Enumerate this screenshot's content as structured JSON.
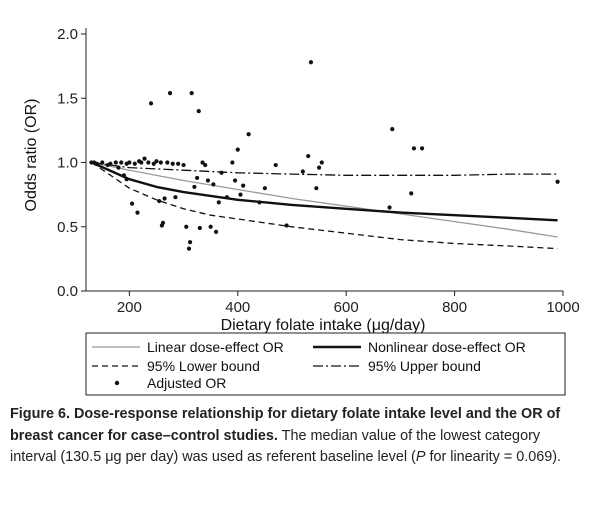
{
  "chart_data": {
    "type": "line",
    "xlabel": "Dietary folate intake (μg/day)",
    "ylabel": "Odds ratio (OR)",
    "xlim": [
      120,
      1000
    ],
    "ylim": [
      0,
      2.0
    ],
    "x_ticks": [
      200,
      400,
      600,
      800,
      1000
    ],
    "y_ticks": [
      0.0,
      0.5,
      1.0,
      1.5,
      2.0
    ],
    "y_tick_labels": [
      "0.0",
      "0.5",
      "1.0",
      "1.5",
      "2.0"
    ],
    "grid": false,
    "legend_position": "bottom",
    "series": [
      {
        "name": "Linear dose-effect OR",
        "style": "solid-thin",
        "color": "#9a9a9a",
        "x": [
          130.5,
          200,
          300,
          400,
          500,
          600,
          700,
          800,
          900,
          990
        ],
        "y": [
          1.0,
          0.94,
          0.86,
          0.79,
          0.72,
          0.66,
          0.6,
          0.54,
          0.48,
          0.42
        ]
      },
      {
        "name": "Nonlinear dose-effect OR",
        "style": "solid-thick",
        "color": "#111111",
        "x": [
          130.5,
          200,
          250,
          300,
          350,
          400,
          500,
          600,
          700,
          800,
          900,
          990
        ],
        "y": [
          1.0,
          0.87,
          0.81,
          0.77,
          0.74,
          0.71,
          0.67,
          0.64,
          0.61,
          0.59,
          0.57,
          0.55
        ]
      },
      {
        "name": "95% Lower bound",
        "style": "dashed",
        "color": "#111111",
        "x": [
          130.5,
          200,
          250,
          300,
          350,
          400,
          500,
          600,
          700,
          800,
          900,
          990
        ],
        "y": [
          1.0,
          0.8,
          0.71,
          0.64,
          0.59,
          0.56,
          0.5,
          0.45,
          0.4,
          0.37,
          0.35,
          0.33
        ]
      },
      {
        "name": "95% Upper bound",
        "style": "dash-dot",
        "color": "#111111",
        "x": [
          130.5,
          200,
          300,
          400,
          500,
          600,
          700,
          800,
          900,
          990
        ],
        "y": [
          1.0,
          0.96,
          0.94,
          0.92,
          0.91,
          0.9,
          0.9,
          0.9,
          0.91,
          0.91
        ]
      },
      {
        "name": "Adjusted OR",
        "style": "points",
        "color": "#111111",
        "points": [
          [
            130,
            1.0
          ],
          [
            135,
            1.0
          ],
          [
            140,
            0.99
          ],
          [
            150,
            1.0
          ],
          [
            160,
            0.98
          ],
          [
            165,
            0.99
          ],
          [
            175,
            1.0
          ],
          [
            180,
            0.96
          ],
          [
            185,
            1.0
          ],
          [
            195,
            0.99
          ],
          [
            200,
            1.0
          ],
          [
            210,
            0.99
          ],
          [
            190,
            0.9
          ],
          [
            195,
            0.87
          ],
          [
            205,
            0.68
          ],
          [
            215,
            0.61
          ],
          [
            218,
            1.01
          ],
          [
            222,
            1.0
          ],
          [
            228,
            1.03
          ],
          [
            235,
            1.0
          ],
          [
            240,
            1.46
          ],
          [
            245,
            0.99
          ],
          [
            250,
            1.01
          ],
          [
            255,
            0.7
          ],
          [
            258,
            1.0
          ],
          [
            260,
            0.51
          ],
          [
            262,
            0.53
          ],
          [
            265,
            0.72
          ],
          [
            270,
            1.0
          ],
          [
            275,
            1.54
          ],
          [
            280,
            0.99
          ],
          [
            285,
            0.73
          ],
          [
            290,
            0.99
          ],
          [
            300,
            0.98
          ],
          [
            305,
            0.5
          ],
          [
            310,
            0.33
          ],
          [
            312,
            0.38
          ],
          [
            315,
            1.54
          ],
          [
            320,
            0.81
          ],
          [
            325,
            0.88
          ],
          [
            328,
            1.4
          ],
          [
            330,
            0.49
          ],
          [
            335,
            1.0
          ],
          [
            340,
            0.98
          ],
          [
            345,
            0.86
          ],
          [
            350,
            0.5
          ],
          [
            355,
            0.83
          ],
          [
            360,
            0.46
          ],
          [
            365,
            0.69
          ],
          [
            370,
            0.92
          ],
          [
            380,
            0.73
          ],
          [
            390,
            1.0
          ],
          [
            395,
            0.86
          ],
          [
            400,
            1.1
          ],
          [
            405,
            0.75
          ],
          [
            410,
            0.82
          ],
          [
            420,
            1.22
          ],
          [
            440,
            0.69
          ],
          [
            450,
            0.8
          ],
          [
            470,
            0.98
          ],
          [
            490,
            0.51
          ],
          [
            520,
            0.93
          ],
          [
            530,
            1.05
          ],
          [
            535,
            1.78
          ],
          [
            545,
            0.8
          ],
          [
            550,
            0.96
          ],
          [
            555,
            1.0
          ],
          [
            680,
            0.65
          ],
          [
            685,
            1.26
          ],
          [
            720,
            0.76
          ],
          [
            725,
            1.11
          ],
          [
            740,
            1.11
          ],
          [
            990,
            0.85
          ]
        ]
      }
    ]
  },
  "legend": {
    "items": [
      {
        "label": "Linear dose-effect OR"
      },
      {
        "label": "Nonlinear dose-effect OR"
      },
      {
        "label": "95% Lower bound"
      },
      {
        "label": "95% Upper bound"
      },
      {
        "label": "Adjusted OR"
      }
    ]
  },
  "caption": {
    "bold": "Figure 6. Dose-response relationship for dietary folate intake level and the OR of breast cancer for case–control studies.",
    "text_a": " The median value of the lowest category interval (130.5 μg per day) was used as referent baseline level (",
    "p_symbol": "P",
    "text_b": " for linearity = 0.069)."
  }
}
